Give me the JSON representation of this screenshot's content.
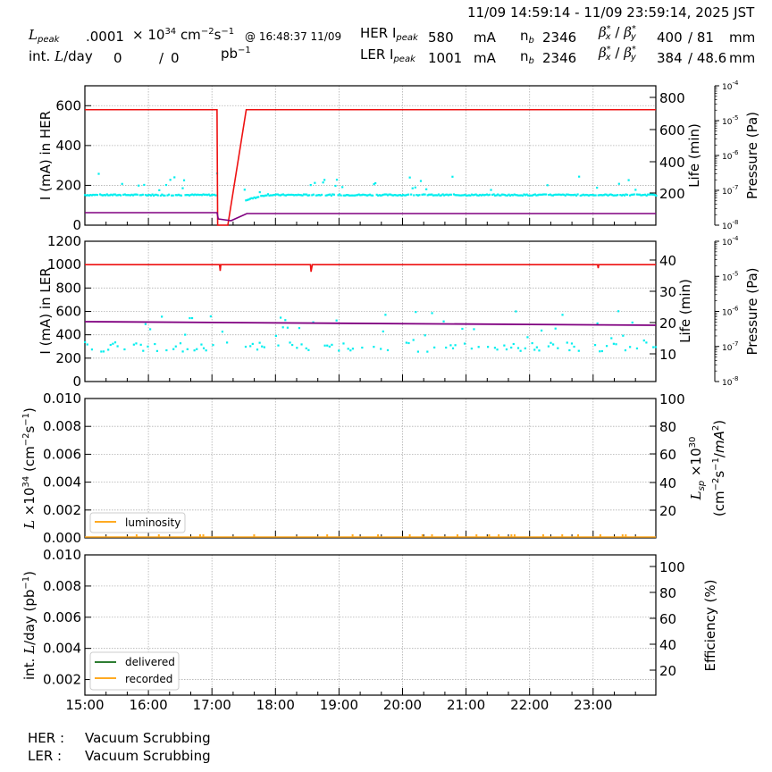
{
  "header": {
    "time_range": "11/09 14:59:14 - 11/09 23:59:14, 2025 JST",
    "lpeak_label": "L",
    "lpeak_sub": "peak",
    "lpeak_value": ".0001",
    "lpeak_unit_prefix": "× 10",
    "lpeak_unit_exp": "34",
    "lpeak_unit_cm": " cm",
    "lpeak_unit_cm_exp": "−2",
    "lpeak_unit_s": "s",
    "lpeak_unit_s_exp": "−1",
    "lpeak_time": "@ 16:48:37 11/09",
    "intl_label_prefix": "int. ",
    "intl_label_L": "L",
    "intl_label_suffix": "/day",
    "intl_delivered": "0",
    "intl_sep": "/",
    "intl_recorded": "0",
    "intl_unit": "pb",
    "intl_unit_exp": "−1",
    "her": {
      "label": "HER I",
      "sub": "peak",
      "current": "580",
      "unit": "mA",
      "nb_label": "n",
      "nb_sub": "b",
      "nb": "2346",
      "beta_label": "β*x / β*y",
      "beta_x": "400",
      "beta_y": "/ 81",
      "beta_unit": "mm"
    },
    "ler": {
      "label": "LER I",
      "sub": "peak",
      "current": "1001",
      "unit": "mA",
      "nb_label": "n",
      "nb_sub": "b",
      "nb": "2346",
      "beta_label": "β*x / β*y",
      "beta_x": "384",
      "beta_y": "/ 48.6",
      "beta_unit": "mm"
    }
  },
  "footer": {
    "her_label": "HER :",
    "her_status": "Vacuum Scrubbing",
    "ler_label": "LER :",
    "ler_status": "Vacuum Scrubbing"
  },
  "colors": {
    "current": "#ee1111",
    "life": "#00eeee",
    "pressure": "#800080",
    "luminosity": "#ffaa22",
    "delivered": "#2e7d32",
    "recorded": "#ffaa22"
  },
  "chart_data": [
    {
      "type": "line",
      "title": "I (mA) in HER",
      "xlabel": "",
      "ylabel": "I (mA) in HER",
      "ylabel_right": "Life (min)",
      "ylabel_right2": "Pressure (Pa)",
      "x_ticks": [
        "15:00",
        "16:00",
        "17:00",
        "18:00",
        "19:00",
        "20:00",
        "21:00",
        "22:00",
        "23:00"
      ],
      "y_ticks": [
        0,
        200,
        400,
        600
      ],
      "ylim": [
        0,
        700
      ],
      "y_right_ticks": [
        200,
        400,
        600,
        800
      ],
      "y_right2_ticks": [
        "10^-8",
        "10^-7",
        "10^-6",
        "10^-5",
        "10^-4"
      ],
      "series": [
        {
          "name": "HER current (mA)",
          "x": [
            "15:00",
            "17:07",
            "17:08",
            "17:15",
            "17:33",
            "23:59"
          ],
          "values": [
            580,
            580,
            0,
            0,
            580,
            580
          ]
        },
        {
          "name": "HER lifetime (min)",
          "approx": "scatter ~200-220 min, gap 17:07-17:30, recovering from ~170 to ~210"
        },
        {
          "name": "HER pressure",
          "approx": "flat low ~6e-8 Pa trace, dip at 17:08-17:30"
        }
      ],
      "grid": true
    },
    {
      "type": "line",
      "title": "I (mA) in LER",
      "ylabel": "I (mA) in LER",
      "ylabel_right": "Life (min)",
      "ylabel_right2": "Pressure (Pa)",
      "y_ticks": [
        0,
        200,
        400,
        600,
        800,
        1000,
        1200
      ],
      "ylim": [
        0,
        1200
      ],
      "y_right_ticks": [
        10,
        20,
        30,
        40
      ],
      "y_right2_ticks": [
        "10^-8",
        "10^-7",
        "10^-6",
        "10^-5",
        "10^-4"
      ],
      "series": [
        {
          "name": "LER current (mA)",
          "x": [
            "15:00",
            "17:08",
            "18:33",
            "23:05",
            "23:59"
          ],
          "values": [
            1000,
            960,
            950,
            975,
            1000
          ],
          "note": "flat ~1000 mA with brief dips"
        },
        {
          "name": "LER lifetime (min)",
          "approx": "scatter ~12-20 min"
        },
        {
          "name": "LER pressure",
          "approx": "flat ~510 on left scale, slowly decreasing to ~490"
        }
      ],
      "grid": true
    },
    {
      "type": "line",
      "title": "Luminosity",
      "ylabel": "L ×10^34 (cm^-2 s^-1)",
      "ylabel_right": "Lsp ×10^30 (cm^-2 s^-1 / mA^2)",
      "y_ticks": [
        0.0,
        0.002,
        0.004,
        0.006,
        0.008,
        0.01
      ],
      "ylim": [
        0,
        0.01
      ],
      "y_right_ticks": [
        20,
        40,
        60,
        80,
        100
      ],
      "legend": [
        "luminosity"
      ],
      "series": [
        {
          "name": "luminosity",
          "values": "~0 throughout with tiny spikes"
        }
      ],
      "grid": true
    },
    {
      "type": "line",
      "title": "Integrated luminosity per day",
      "ylabel": "int. L/day (pb^-1)",
      "ylabel_right": "Efficiency (%)",
      "y_ticks": [
        0.002,
        0.004,
        0.006,
        0.008,
        0.01
      ],
      "ylim": [
        0.001,
        0.01
      ],
      "y_right_ticks": [
        20,
        40,
        60,
        80,
        100
      ],
      "legend": [
        "delivered",
        "recorded"
      ],
      "series": [
        {
          "name": "delivered",
          "values": []
        },
        {
          "name": "recorded",
          "values": []
        }
      ],
      "grid": true
    }
  ]
}
